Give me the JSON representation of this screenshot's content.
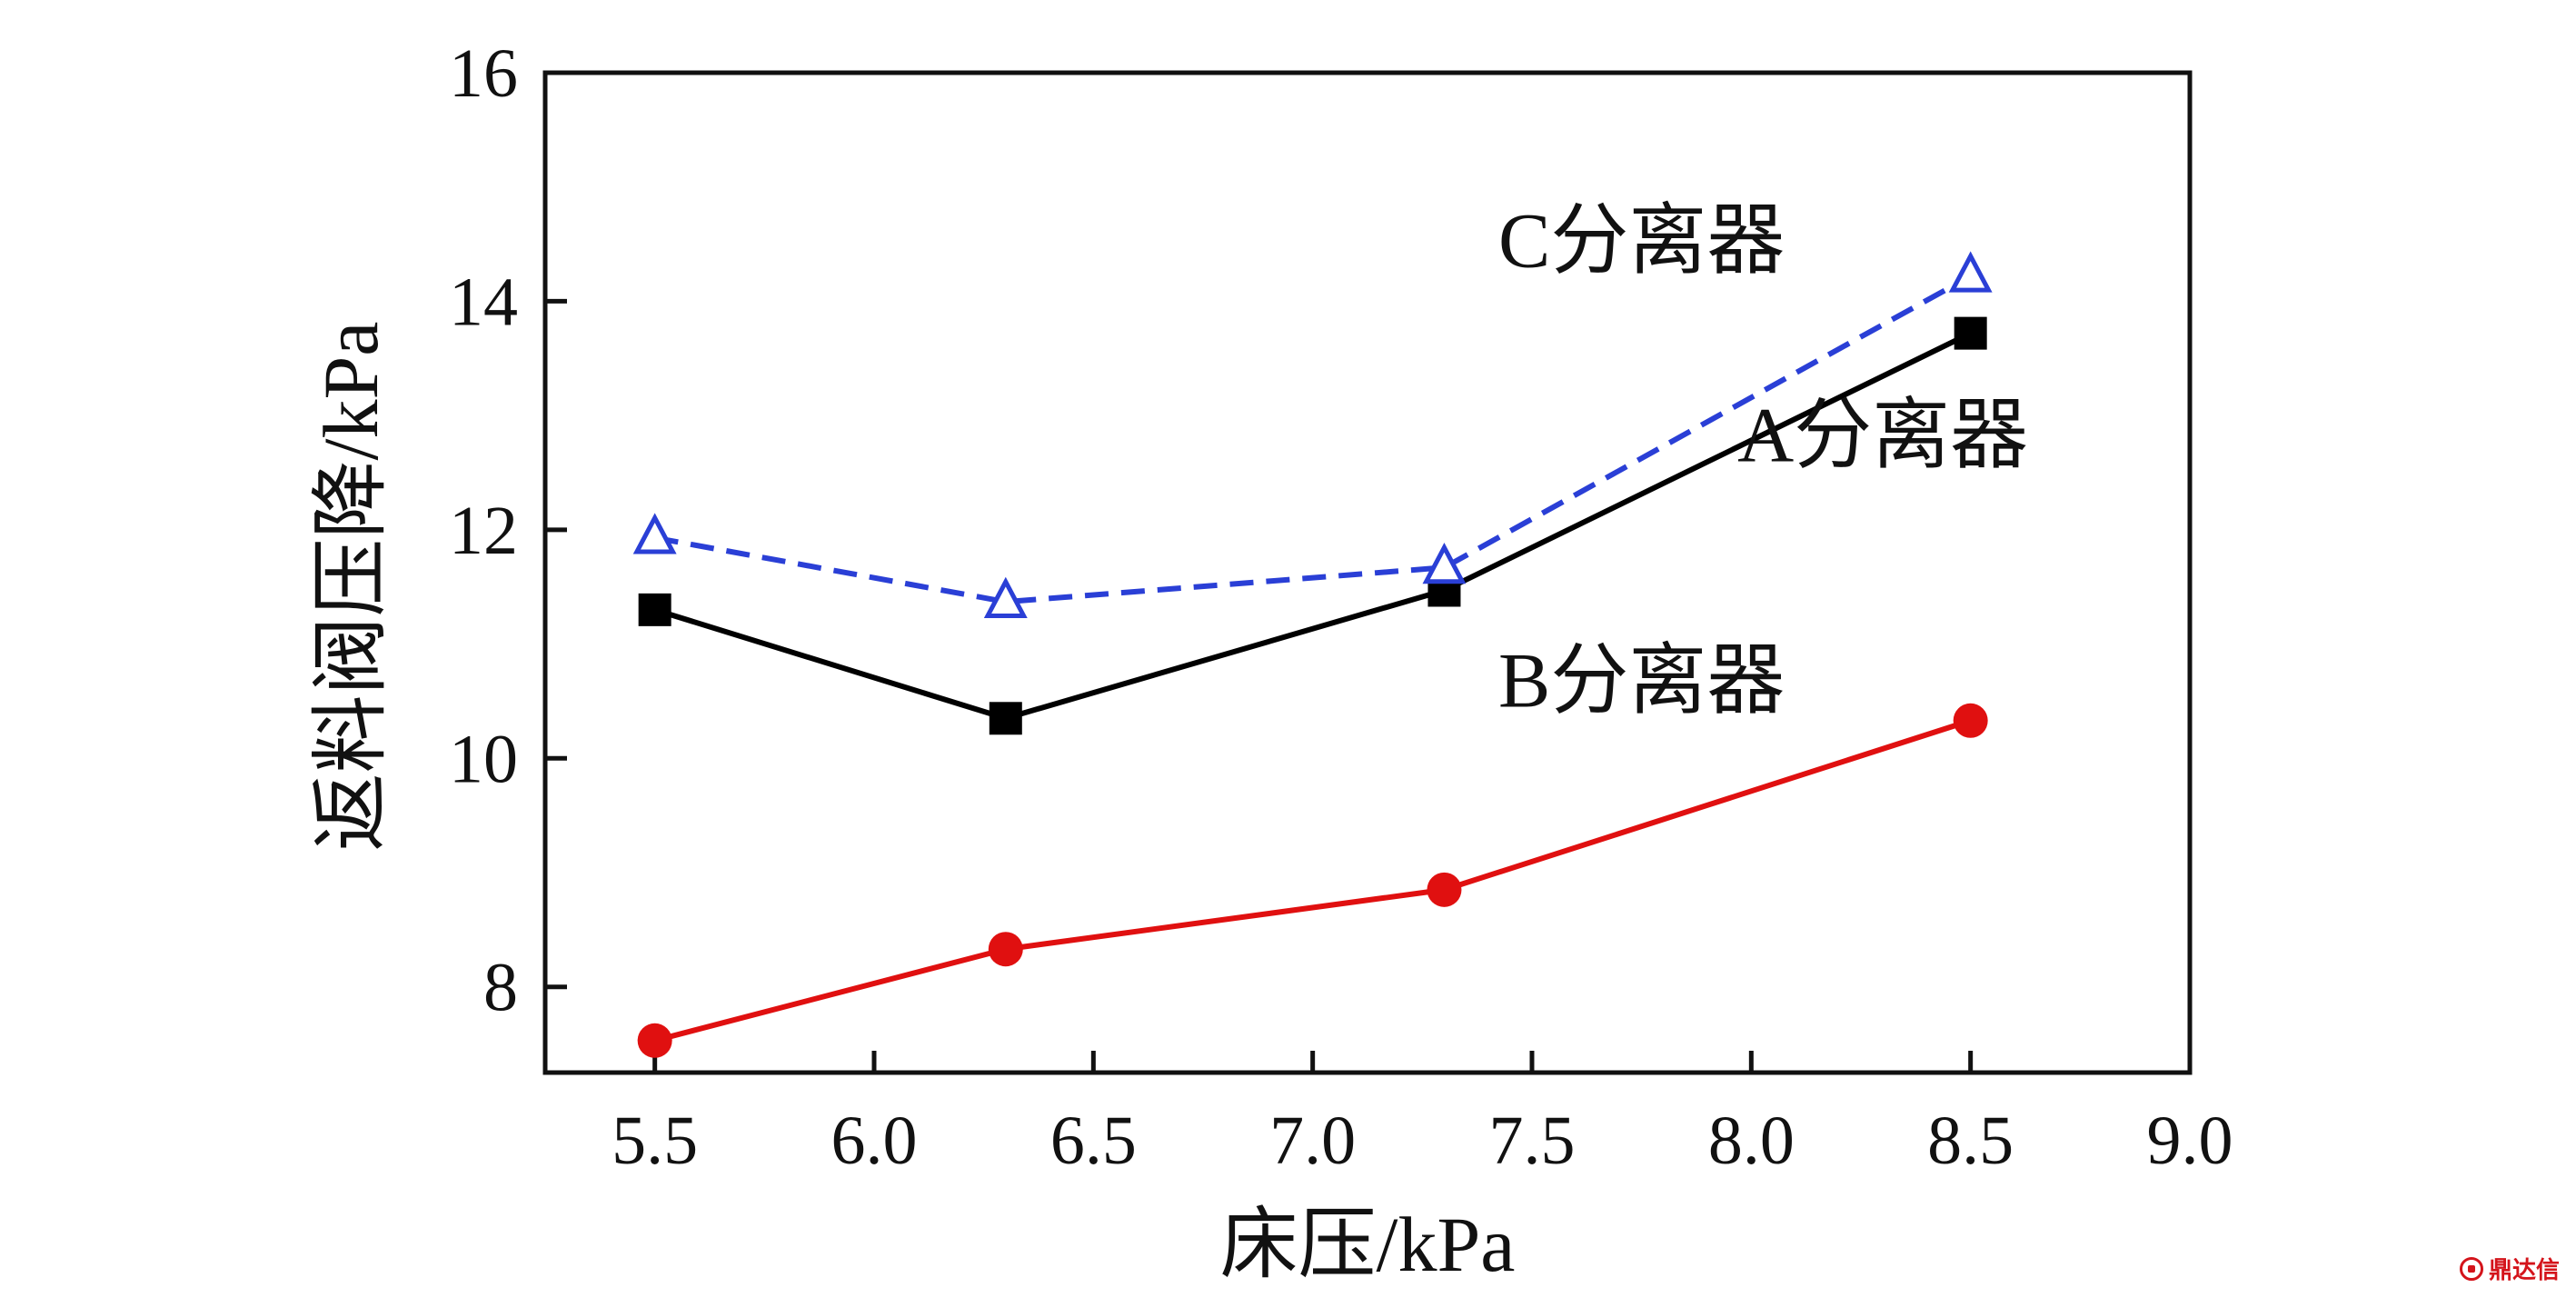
{
  "chart_data": {
    "type": "line",
    "xlabel": "床压/kPa",
    "ylabel": "返料阀压降/kPa",
    "xlim": [
      5.25,
      9.0
    ],
    "ylim": [
      7.25,
      16.0
    ],
    "xticks": [
      "5.5",
      "6.0",
      "6.5",
      "7.0",
      "7.5",
      "8.0",
      "8.5",
      "9.0"
    ],
    "xtick_values": [
      5.5,
      6.0,
      6.5,
      7.0,
      7.5,
      8.0,
      8.5,
      9.0
    ],
    "yticks": [
      "8",
      "10",
      "12",
      "14",
      "16"
    ],
    "ytick_values": [
      8,
      10,
      12,
      14,
      16
    ],
    "x": [
      5.5,
      6.3,
      7.3,
      8.5
    ],
    "grid": false,
    "series": [
      {
        "name": "A分离器",
        "values": [
          11.3,
          10.35,
          11.47,
          13.72
        ],
        "color": "#000000",
        "marker": "square",
        "line": "solid",
        "label_pos": [
          8.3,
          12.6
        ]
      },
      {
        "name": "B分离器",
        "values": [
          7.53,
          8.33,
          8.85,
          10.33
        ],
        "color": "#e01010",
        "marker": "circle",
        "line": "solid",
        "label_pos": [
          7.75,
          10.45
        ]
      },
      {
        "name": "C分离器",
        "values": [
          11.93,
          11.37,
          11.67,
          14.22
        ],
        "color": "#2a3fd6",
        "marker": "triangle-open",
        "line": "dashed",
        "label_pos": [
          7.75,
          14.3
        ]
      }
    ]
  },
  "watermark": {
    "icon": "dingdaxin-logo-icon",
    "text": "鼎达信"
  }
}
